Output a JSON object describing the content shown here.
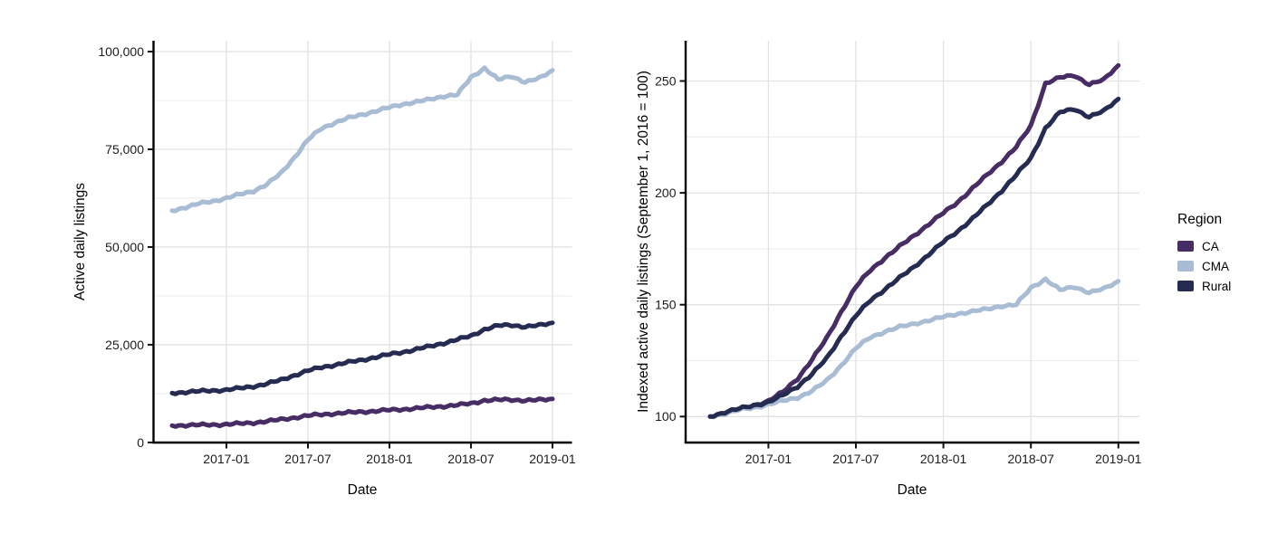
{
  "figure_background": "#ffffff",
  "colors": {
    "grid_major": "#e2e2e2",
    "grid_minor": "#ededed",
    "axis_line": "#000000",
    "tick_mark": "#111111",
    "tick_text": "#1c1c1c"
  },
  "legend": {
    "title": "Region",
    "items": [
      {
        "label": "CA",
        "color": "#472d63"
      },
      {
        "label": "CMA",
        "color": "#a8bcd4"
      },
      {
        "label": "Rural",
        "color": "#262c51"
      }
    ]
  },
  "chart_data": [
    {
      "type": "line",
      "title": "",
      "xlabel": "Date",
      "ylabel": "Active daily listings",
      "x": [
        "2016-09",
        "2016-10",
        "2016-11",
        "2016-12",
        "2017-01",
        "2017-02",
        "2017-03",
        "2017-04",
        "2017-05",
        "2017-06",
        "2017-07",
        "2017-08",
        "2017-09",
        "2017-10",
        "2017-11",
        "2017-12",
        "2018-01",
        "2018-02",
        "2018-03",
        "2018-04",
        "2018-05",
        "2018-06",
        "2018-07",
        "2018-08",
        "2018-09",
        "2018-10",
        "2018-11",
        "2018-12",
        "2019-01"
      ],
      "x_tick_indices": [
        4,
        10,
        16,
        22,
        28
      ],
      "x_tick_labels": [
        "2017-01",
        "2017-07",
        "2018-01",
        "2018-07",
        "2019-01"
      ],
      "y_ticks": [
        0,
        25000,
        50000,
        75000,
        100000
      ],
      "y_tick_labels": [
        "0",
        "25,000",
        "50,000",
        "75,000",
        "100,000"
      ],
      "y_minor": [
        12500,
        37500,
        62500,
        87500
      ],
      "ylim": [
        0,
        102500
      ],
      "grid": true,
      "legend_position": "none",
      "series": [
        {
          "name": "CA",
          "color": "#472d63",
          "values": [
            4330,
            4395,
            4460,
            4545,
            4635,
            4805,
            5065,
            5435,
            5845,
            6365,
            6840,
            7165,
            7405,
            7620,
            7835,
            8055,
            8270,
            8485,
            8745,
            9005,
            9265,
            9550,
            9960,
            10780,
            10890,
            10935,
            10760,
            10845,
            11130
          ]
        },
        {
          "name": "CMA",
          "color": "#a8bcd4",
          "values": [
            59300,
            60200,
            61100,
            61700,
            62550,
            63450,
            64350,
            66100,
            68800,
            72950,
            77400,
            80350,
            81850,
            83000,
            83900,
            84800,
            85700,
            86550,
            87150,
            87750,
            88650,
            88950,
            93400,
            95800,
            92800,
            93700,
            92200,
            93100,
            95200
          ]
        },
        {
          "name": "Rural",
          "color": "#262c51",
          "values": [
            12650,
            12900,
            13090,
            13280,
            13470,
            13850,
            14360,
            15050,
            15940,
            17200,
            18340,
            19230,
            19860,
            20490,
            21130,
            21820,
            22520,
            23150,
            23845,
            24600,
            25430,
            26310,
            27260,
            28970,
            29855,
            30045,
            29600,
            29915,
            30615
          ]
        }
      ]
    },
    {
      "type": "line",
      "title": "",
      "xlabel": "Date",
      "ylabel": "Indexed active daily listings (September 1, 2016 = 100)",
      "x": [
        "2016-09",
        "2016-10",
        "2016-11",
        "2016-12",
        "2017-01",
        "2017-02",
        "2017-03",
        "2017-04",
        "2017-05",
        "2017-06",
        "2017-07",
        "2017-08",
        "2017-09",
        "2017-10",
        "2017-11",
        "2017-12",
        "2018-01",
        "2018-02",
        "2018-03",
        "2018-04",
        "2018-05",
        "2018-06",
        "2018-07",
        "2018-08",
        "2018-09",
        "2018-10",
        "2018-11",
        "2018-12",
        "2019-01"
      ],
      "x_tick_indices": [
        4,
        10,
        16,
        22,
        28
      ],
      "x_tick_labels": [
        "2017-01",
        "2017-07",
        "2018-01",
        "2018-07",
        "2019-01"
      ],
      "y_ticks": [
        100,
        150,
        200,
        250
      ],
      "y_tick_labels": [
        "100",
        "150",
        "200",
        "250"
      ],
      "y_minor": [
        125,
        175,
        225
      ],
      "ylim": [
        88,
        268
      ],
      "grid": true,
      "legend_position": "right",
      "series": [
        {
          "name": "CA",
          "color": "#472d63",
          "values": [
            100,
            101.5,
            103,
            105,
            107,
            111,
            117,
            125.5,
            135,
            147,
            158,
            165.5,
            171,
            176,
            181,
            186,
            191,
            196,
            202,
            208,
            214,
            220.5,
            230,
            249,
            251.5,
            252.5,
            248.5,
            250.5,
            257
          ]
        },
        {
          "name": "CMA",
          "color": "#a8bcd4",
          "values": [
            100,
            101.5,
            103,
            104,
            105.5,
            107,
            108.5,
            111.5,
            116,
            123,
            130.5,
            135.5,
            138,
            140,
            141.5,
            143,
            144.5,
            146,
            147,
            148,
            149.5,
            150,
            157.5,
            161.5,
            156.5,
            158,
            155.5,
            157,
            160.5
          ]
        },
        {
          "name": "Rural",
          "color": "#262c51",
          "values": [
            100,
            102,
            103.5,
            105,
            106.5,
            109.5,
            113.5,
            119,
            126,
            136,
            145,
            152,
            157,
            162,
            167,
            172.5,
            178,
            183,
            188.5,
            194.5,
            201,
            208,
            215.5,
            229,
            236,
            237.5,
            234,
            236.5,
            242
          ]
        }
      ]
    }
  ]
}
